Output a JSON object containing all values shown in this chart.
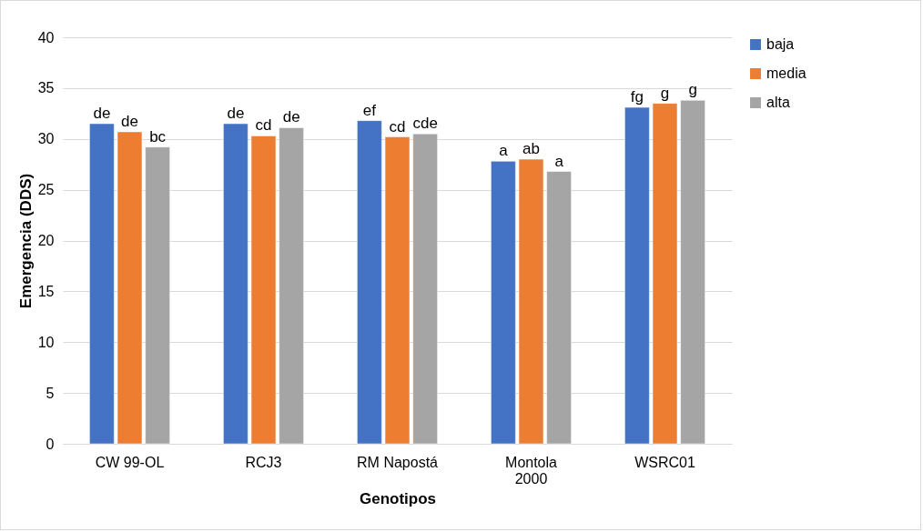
{
  "chart_data": {
    "type": "bar",
    "xlabel": "Genotipos",
    "ylabel": "Emergencia (DDS)",
    "categories": [
      "CW 99-OL",
      "RCJ3",
      "RM Napostá",
      "Montola 2000",
      "WSRC01"
    ],
    "series": [
      {
        "name": "baja",
        "color": "#4472c4",
        "values": [
          31.5,
          31.5,
          31.8,
          27.8,
          33.1
        ],
        "value_labels": [
          "de",
          "de",
          "ef",
          "a",
          "fg"
        ]
      },
      {
        "name": "media",
        "color": "#ed7d31",
        "values": [
          30.7,
          30.3,
          30.2,
          28.0,
          33.5
        ],
        "value_labels": [
          "de",
          "cd",
          "cd",
          "ab",
          "g"
        ]
      },
      {
        "name": "alta",
        "color": "#a5a5a5",
        "values": [
          29.2,
          31.1,
          30.5,
          26.8,
          33.8
        ],
        "value_labels": [
          "bc",
          "de",
          "cde",
          "a",
          "g"
        ]
      }
    ],
    "ylim": [
      0,
      40
    ],
    "yticks": [
      0,
      5,
      10,
      15,
      20,
      25,
      30,
      35,
      40
    ],
    "grid": "y",
    "legend": "right"
  }
}
